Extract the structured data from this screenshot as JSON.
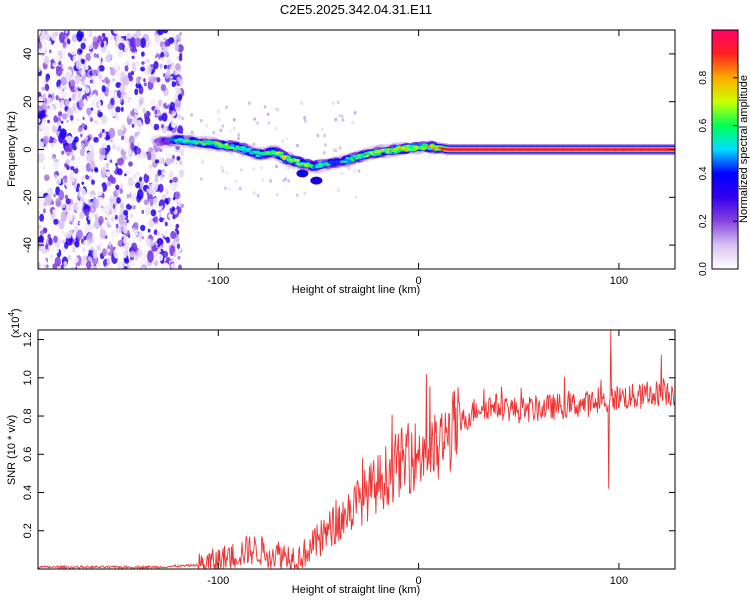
{
  "title": "C2E5.2025.342.04.31.E11",
  "chart_data": [
    {
      "type": "heatmap",
      "title": "C2E5.2025.342.04.31.E11",
      "xlabel": "Height of straight line (km)",
      "ylabel": "Frequency (Hz)",
      "xlim": [
        -190,
        128
      ],
      "ylim": [
        -50,
        50
      ],
      "xticks": [
        -100,
        0,
        100
      ],
      "yticks": [
        -40,
        -20,
        0,
        20,
        40
      ],
      "colorbar": {
        "label": "Normalized spectral amplitude",
        "range": [
          0,
          1
        ],
        "ticks": [
          "0.0",
          "0.2",
          "0.4",
          "0.6",
          "0.8"
        ],
        "colors": [
          "#ffffff",
          "#d9c2f2",
          "#8844dd",
          "#3300ee",
          "#0000ff",
          "#00ddff",
          "#00ff55",
          "#ccff00",
          "#ffaa00",
          "#ff2222",
          "#ff0066"
        ]
      },
      "noise_region_x": [
        -190,
        -118
      ],
      "ridge": {
        "x": [
          -130,
          -120,
          -110,
          -100,
          -90,
          -80,
          -72,
          -65,
          -58,
          -52,
          -45,
          -38,
          -30,
          -20,
          -10,
          0,
          8,
          15,
          30,
          60,
          90,
          128
        ],
        "freq": [
          3,
          4,
          3,
          2,
          1,
          -2,
          -1,
          -4,
          -6,
          -7,
          -6,
          -5,
          -3,
          -1,
          0,
          1,
          1,
          0,
          0,
          0,
          0,
          0
        ],
        "amplitude": [
          0.35,
          0.55,
          0.6,
          0.65,
          0.6,
          0.55,
          0.65,
          0.75,
          0.7,
          0.6,
          0.55,
          0.5,
          0.6,
          0.7,
          0.75,
          0.7,
          0.8,
          0.95,
          0.95,
          0.95,
          0.95,
          0.95
        ]
      },
      "blobs": [
        {
          "x": -51,
          "freq": -13
        },
        {
          "x": -58,
          "freq": -10
        }
      ]
    },
    {
      "type": "line",
      "xlabel": "Height of straight line (km)",
      "ylabel": "SNR (10 * v/v)",
      "scale_label": "(x10",
      "scale_exponent": "4",
      "xlim": [
        -190,
        128
      ],
      "ylim": [
        0,
        1.25
      ],
      "xticks": [
        -100,
        0,
        100
      ],
      "yticks": [
        0.2,
        0.4,
        0.6,
        0.8,
        1.0,
        1.2
      ],
      "ytick_labels": [
        "0.2",
        "0.4",
        "0.6",
        "0.8",
        "1.0",
        "1.2"
      ],
      "series": [
        {
          "name": "SNR",
          "color": "#ee3333",
          "x": [
            -190,
            -160,
            -130,
            -110,
            -95,
            -85,
            -80,
            -75,
            -70,
            -65,
            -60,
            -55,
            -50,
            -45,
            -40,
            -35,
            -30,
            -25,
            -20,
            -15,
            -10,
            -5,
            0,
            5,
            10,
            15,
            20,
            25,
            30,
            40,
            50,
            60,
            70,
            80,
            90,
            95,
            100,
            110,
            120,
            128
          ],
          "y": [
            0.01,
            0.01,
            0.01,
            0.02,
            0.06,
            0.1,
            0.1,
            0.08,
            0.08,
            0.07,
            0.06,
            0.1,
            0.15,
            0.2,
            0.25,
            0.3,
            0.35,
            0.4,
            0.45,
            0.5,
            0.55,
            0.58,
            0.6,
            0.62,
            0.62,
            0.7,
            0.75,
            0.8,
            0.85,
            0.85,
            0.83,
            0.84,
            0.85,
            0.86,
            0.87,
            0.88,
            0.9,
            0.9,
            0.92,
            0.92
          ],
          "spikes": [
            {
              "x": 4,
              "y": 1.02
            },
            {
              "x": 95,
              "y": 0.42
            },
            {
              "x": 96,
              "y": 1.25
            },
            {
              "x": -28,
              "y": 0.58
            },
            {
              "x": 121,
              "y": 1.12
            }
          ]
        }
      ]
    }
  ]
}
